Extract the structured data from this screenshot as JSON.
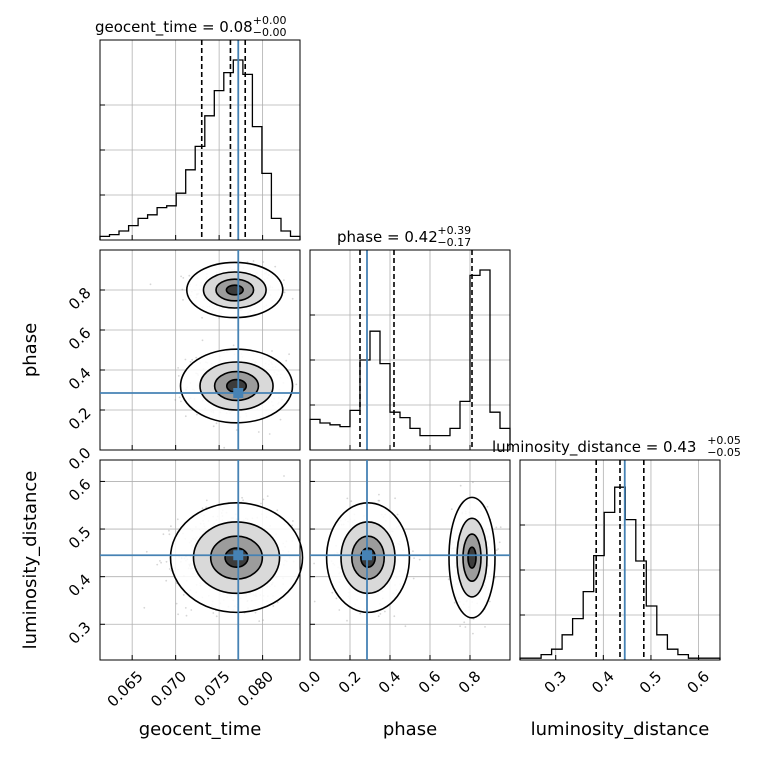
{
  "chart_data": {
    "type": "corner",
    "parameters": [
      "geocent_time",
      "phase",
      "luminosity_distance"
    ],
    "truths": {
      "geocent_time": 0.0772,
      "phase": 0.285,
      "luminosity_distance": 0.445
    },
    "titles": [
      {
        "param": "geocent_time",
        "label": "geocent_time = 0.08",
        "plus": "+0.00",
        "minus": "−0.00"
      },
      {
        "param": "phase",
        "label": "phase = 0.42",
        "plus": "+0.39",
        "minus": "−0.17"
      },
      {
        "param": "luminosity_distance",
        "label": "luminosity_distance = 0.43",
        "plus": "+0.05",
        "minus": "−0.05"
      }
    ],
    "ranges": {
      "geocent_time": [
        0.0613,
        0.0843
      ],
      "phase": [
        0.0,
        1.0
      ],
      "luminosity_distance": [
        0.225,
        0.645
      ]
    },
    "ticks": {
      "geocent_time": [
        0.065,
        0.07,
        0.075,
        0.08
      ],
      "phase": [
        0.0,
        0.2,
        0.4,
        0.6,
        0.8
      ],
      "luminosity_distance": [
        0.3,
        0.4,
        0.5,
        0.6
      ]
    },
    "tick_labels": {
      "geocent_time": [
        "0.065",
        "0.070",
        "0.075",
        "0.080"
      ],
      "phase": [
        "0.0",
        "0.2",
        "0.4",
        "0.6",
        "0.8"
      ],
      "phase_y": [
        "0.0",
        "0.2",
        "0.4",
        "0.6",
        "0.8"
      ],
      "luminosity_distance": [
        "0.3",
        "0.4",
        "0.5",
        "0.6"
      ]
    },
    "quantiles": {
      "geocent_time": [
        0.073,
        0.0763,
        0.078
      ],
      "phase": [
        0.25,
        0.42,
        0.81
      ],
      "luminosity_distance": [
        0.385,
        0.435,
        0.485
      ]
    },
    "histograms": {
      "geocent_time": [
        0.02,
        0.03,
        0.05,
        0.08,
        0.12,
        0.14,
        0.18,
        0.19,
        0.26,
        0.39,
        0.52,
        0.69,
        0.83,
        0.93,
        1.0,
        0.92,
        0.63,
        0.37,
        0.12,
        0.05,
        0.02
      ],
      "phase": [
        0.17,
        0.15,
        0.14,
        0.13,
        0.22,
        0.5,
        0.66,
        0.48,
        0.21,
        0.18,
        0.12,
        0.08,
        0.08,
        0.08,
        0.12,
        0.27,
        0.97,
        1.0,
        0.21,
        0.12
      ],
      "luminosity_distance": [
        0.01,
        0.01,
        0.03,
        0.06,
        0.14,
        0.23,
        0.38,
        0.58,
        0.82,
        0.96,
        0.78,
        0.55,
        0.3,
        0.14,
        0.06,
        0.03,
        0.01,
        0.01,
        0.01
      ]
    },
    "contours_2d": [
      {
        "x": "geocent_time",
        "y": "phase",
        "modes": [
          [
            0.0768,
            0.8
          ],
          [
            0.077,
            0.32
          ]
        ]
      },
      {
        "x": "geocent_time",
        "y": "luminosity_distance",
        "modes": [
          [
            0.077,
            0.44
          ]
        ]
      },
      {
        "x": "phase",
        "y": "luminosity_distance",
        "modes": [
          [
            0.29,
            0.44
          ],
          [
            0.81,
            0.44
          ]
        ]
      }
    ],
    "grid": true
  }
}
